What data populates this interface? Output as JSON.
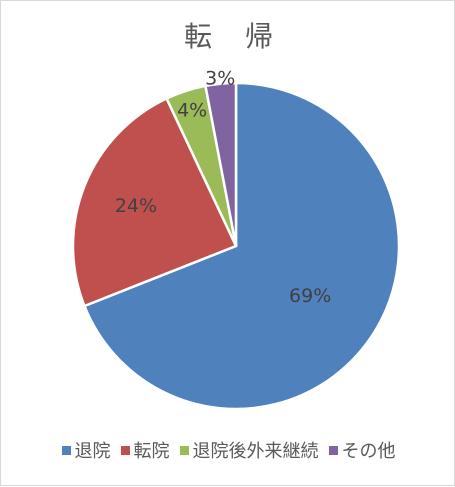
{
  "chart_data": {
    "type": "pie",
    "title": "転 帰",
    "categories": [
      "退院",
      "転院",
      "退院後外来継続",
      "その他"
    ],
    "values": [
      69,
      24,
      4,
      3
    ],
    "labels": [
      "69%",
      "24%",
      "4%",
      "3%"
    ],
    "colors": [
      "#4f81bd",
      "#c0504d",
      "#9bbb59",
      "#8064a2"
    ],
    "legend_position": "bottom"
  }
}
